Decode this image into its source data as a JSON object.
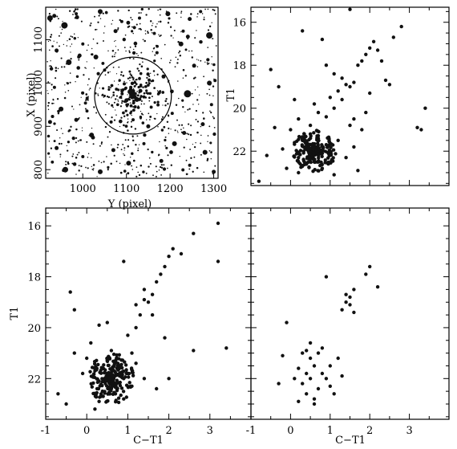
{
  "chart_data": [
    {
      "type": "scatter",
      "panel": "field-image",
      "xlabel": "Y (pixel)",
      "ylabel": "X (pixel)",
      "xlim": [
        915,
        1310
      ],
      "ylim": [
        780,
        1175
      ],
      "xticks": [
        "1000",
        "1100",
        "1200",
        "1300"
      ],
      "yticks": [
        "800",
        "900",
        "1000",
        "1100"
      ],
      "x_tick_values": [
        1000,
        1100,
        1200,
        1300
      ],
      "y_tick_values": [
        800,
        900,
        1000,
        1100
      ],
      "circle": {
        "center": [
          1115,
          971
        ],
        "radius": 88
      },
      "stars": [
        [
          1115,
          970,
          3.5
        ],
        [
          1108,
          980,
          3
        ],
        [
          1124,
          962,
          3
        ],
        [
          1100,
          960,
          2.5
        ],
        [
          1132,
          982,
          2.5
        ],
        [
          1110,
          990,
          2
        ],
        [
          1090,
          975,
          2
        ],
        [
          1140,
          968,
          2
        ],
        [
          1120,
          945,
          2
        ],
        [
          1095,
          998,
          2
        ],
        [
          1150,
          995,
          1.8
        ],
        [
          1080,
          950,
          1.8
        ],
        [
          1130,
          1010,
          1.8
        ],
        [
          1060,
          985,
          1.6
        ],
        [
          1165,
          955,
          1.6
        ],
        [
          925,
          1150,
          3.5
        ],
        [
          958,
          1133,
          4
        ],
        [
          985,
          1160,
          2
        ],
        [
          1040,
          1165,
          3
        ],
        [
          1075,
          1120,
          2.5
        ],
        [
          1130,
          1150,
          2
        ],
        [
          1195,
          1160,
          3
        ],
        [
          1245,
          1148,
          2.5
        ],
        [
          1290,
          1110,
          4
        ],
        [
          1270,
          1165,
          2
        ],
        [
          940,
          1075,
          2.5
        ],
        [
          968,
          1048,
          3.5
        ],
        [
          1000,
          1090,
          2
        ],
        [
          1030,
          1060,
          3
        ],
        [
          1225,
          1090,
          3
        ],
        [
          1255,
          1040,
          2.5
        ],
        [
          1290,
          1000,
          3
        ],
        [
          1240,
          975,
          4.5
        ],
        [
          1205,
          930,
          2
        ],
        [
          1275,
          905,
          2.5
        ],
        [
          935,
          990,
          2
        ],
        [
          950,
          940,
          3
        ],
        [
          985,
          915,
          2.5
        ],
        [
          1010,
          965,
          2
        ],
        [
          1020,
          880,
          3
        ],
        [
          940,
          850,
          2.5
        ],
        [
          960,
          800,
          3.5
        ],
        [
          1000,
          830,
          2
        ],
        [
          1040,
          795,
          3
        ],
        [
          1070,
          845,
          2.5
        ],
        [
          1105,
          815,
          3
        ],
        [
          1140,
          860,
          2
        ],
        [
          1180,
          820,
          2.5
        ],
        [
          1210,
          860,
          3
        ],
        [
          1245,
          810,
          2
        ],
        [
          1280,
          840,
          3
        ],
        [
          1300,
          795,
          2.5
        ],
        [
          1170,
          1070,
          2
        ],
        [
          1050,
          1030,
          2
        ],
        [
          1230,
          1120,
          2
        ],
        [
          1185,
          1015,
          2.5
        ],
        [
          1065,
          910,
          2
        ],
        [
          1150,
          900,
          2.5
        ],
        [
          1295,
          950,
          2
        ],
        [
          925,
          910,
          2.5
        ]
      ]
    },
    {
      "type": "scatter",
      "panel": "cmd-cluster-field",
      "xlabel": "",
      "ylabel": "T1",
      "xlim": [
        -1,
        4
      ],
      "ylim": [
        23.6,
        15.3
      ],
      "y_tick_values": [
        16,
        18,
        20,
        22
      ],
      "yticks": [
        "16",
        "18",
        "20",
        "22"
      ],
      "points": [
        [
          0.6,
          22.0
        ],
        [
          0.4,
          21.8
        ],
        [
          0.5,
          22.2
        ],
        [
          0.3,
          21.5
        ],
        [
          0.7,
          21.9
        ],
        [
          0.8,
          22.1
        ],
        [
          0.2,
          22.3
        ],
        [
          0.5,
          21.2
        ],
        [
          0.9,
          21.7
        ],
        [
          0.1,
          21.6
        ],
        [
          0.6,
          22.5
        ],
        [
          0.4,
          22.6
        ],
        [
          0.7,
          21.4
        ],
        [
          1.0,
          22.0
        ],
        [
          0.3,
          22.7
        ],
        [
          0.0,
          21.0
        ],
        [
          -0.2,
          21.9
        ],
        [
          1.2,
          21.5
        ],
        [
          0.8,
          22.8
        ],
        [
          0.5,
          20.8
        ],
        [
          0.2,
          20.5
        ],
        [
          -0.4,
          20.9
        ],
        [
          -0.6,
          22.2
        ],
        [
          -0.8,
          23.4
        ],
        [
          1.4,
          22.3
        ],
        [
          1.6,
          21.8
        ],
        [
          0.9,
          20.4
        ],
        [
          1.1,
          20.0
        ],
        [
          1.3,
          19.6
        ],
        [
          1.2,
          19.2
        ],
        [
          1.4,
          18.9
        ],
        [
          1.5,
          19.0
        ],
        [
          1.6,
          18.8
        ],
        [
          1.3,
          18.6
        ],
        [
          1.1,
          18.4
        ],
        [
          1.7,
          18.0
        ],
        [
          1.8,
          17.8
        ],
        [
          2.0,
          17.2
        ],
        [
          1.9,
          17.5
        ],
        [
          2.1,
          16.9
        ],
        [
          2.2,
          17.3
        ],
        [
          2.6,
          16.7
        ],
        [
          2.8,
          16.2
        ],
        [
          2.3,
          17.8
        ],
        [
          2.4,
          18.7
        ],
        [
          2.5,
          18.9
        ],
        [
          3.2,
          20.9
        ],
        [
          3.3,
          21.0
        ],
        [
          3.4,
          20.0
        ],
        [
          0.3,
          16.4
        ],
        [
          0.8,
          16.8
        ],
        [
          1.5,
          15.4
        ],
        [
          0.9,
          18.0
        ],
        [
          1.0,
          19.5
        ],
        [
          1.6,
          20.5
        ],
        [
          1.8,
          21.0
        ],
        [
          2.0,
          19.3
        ],
        [
          1.9,
          20.2
        ],
        [
          -0.5,
          18.2
        ],
        [
          -0.3,
          19.0
        ],
        [
          0.1,
          19.6
        ],
        [
          0.6,
          19.8
        ],
        [
          0.7,
          20.2
        ],
        [
          1.5,
          20.8
        ],
        [
          1.7,
          22.9
        ],
        [
          0.2,
          23.0
        ],
        [
          1.1,
          23.1
        ],
        [
          -0.1,
          22.8
        ]
      ]
    },
    {
      "type": "scatter",
      "panel": "cmd-cluster",
      "xlabel": "C−T1",
      "ylabel": "T1",
      "xlim": [
        -1,
        4
      ],
      "ylim": [
        23.6,
        15.3
      ],
      "x_tick_values": [
        -1,
        0,
        1,
        2,
        3
      ],
      "xticks": [
        "-1",
        "0",
        "1",
        "2",
        "3"
      ],
      "y_tick_values": [
        16,
        18,
        20,
        22
      ],
      "yticks": [
        "16",
        "18",
        "20",
        "22"
      ],
      "points": [
        [
          0.6,
          22.0
        ],
        [
          0.5,
          21.8
        ],
        [
          0.7,
          22.2
        ],
        [
          0.4,
          21.6
        ],
        [
          0.8,
          21.9
        ],
        [
          0.6,
          22.4
        ],
        [
          0.3,
          22.1
        ],
        [
          0.5,
          21.3
        ],
        [
          0.9,
          22.0
        ],
        [
          0.2,
          21.7
        ],
        [
          0.7,
          22.6
        ],
        [
          0.4,
          22.7
        ],
        [
          0.8,
          21.5
        ],
        [
          1.0,
          21.8
        ],
        [
          0.3,
          22.9
        ],
        [
          0.0,
          21.2
        ],
        [
          -0.1,
          21.8
        ],
        [
          1.2,
          21.4
        ],
        [
          0.9,
          22.8
        ],
        [
          0.6,
          20.9
        ],
        [
          0.1,
          20.6
        ],
        [
          -0.3,
          21.0
        ],
        [
          -0.7,
          22.6
        ],
        [
          -0.5,
          23.0
        ],
        [
          1.1,
          22.3
        ],
        [
          1.4,
          22.0
        ],
        [
          1.0,
          20.3
        ],
        [
          1.2,
          20.0
        ],
        [
          1.3,
          19.5
        ],
        [
          1.2,
          19.1
        ],
        [
          1.4,
          18.9
        ],
        [
          1.5,
          19.0
        ],
        [
          1.6,
          18.7
        ],
        [
          1.4,
          18.5
        ],
        [
          1.7,
          18.2
        ],
        [
          1.8,
          17.9
        ],
        [
          1.9,
          17.6
        ],
        [
          2.0,
          17.2
        ],
        [
          2.1,
          16.9
        ],
        [
          2.3,
          17.1
        ],
        [
          2.6,
          16.3
        ],
        [
          3.2,
          15.9
        ],
        [
          3.2,
          17.4
        ],
        [
          3.4,
          20.8
        ],
        [
          2.6,
          20.9
        ],
        [
          1.9,
          20.4
        ],
        [
          0.9,
          17.4
        ],
        [
          1.6,
          19.5
        ],
        [
          0.3,
          19.9
        ],
        [
          -0.4,
          18.6
        ],
        [
          -0.3,
          19.3
        ],
        [
          0.5,
          19.8
        ],
        [
          1.1,
          21.0
        ],
        [
          1.7,
          22.4
        ],
        [
          2.0,
          22.0
        ],
        [
          0.2,
          23.2
        ]
      ]
    },
    {
      "type": "scatter",
      "panel": "cmd-field",
      "xlabel": "C−T1",
      "ylabel": "",
      "xlim": [
        -1,
        4
      ],
      "ylim": [
        23.6,
        15.3
      ],
      "x_tick_values": [
        -1,
        0,
        1,
        2,
        3
      ],
      "xticks": [
        "-1",
        "0",
        "1",
        "2",
        "3"
      ],
      "points": [
        [
          0.4,
          21.8
        ],
        [
          0.5,
          22.0
        ],
        [
          0.6,
          21.5
        ],
        [
          0.3,
          22.2
        ],
        [
          0.7,
          22.4
        ],
        [
          0.5,
          21.2
        ],
        [
          0.8,
          21.8
        ],
        [
          0.2,
          21.6
        ],
        [
          0.4,
          22.6
        ],
        [
          0.6,
          22.8
        ],
        [
          0.9,
          22.0
        ],
        [
          0.3,
          21.0
        ],
        [
          1.0,
          21.5
        ],
        [
          0.1,
          22.0
        ],
        [
          0.7,
          21.0
        ],
        [
          1.1,
          22.6
        ],
        [
          0.5,
          20.6
        ],
        [
          -0.2,
          21.1
        ],
        [
          -0.3,
          22.2
        ],
        [
          0.8,
          20.8
        ],
        [
          0.4,
          20.9
        ],
        [
          1.2,
          21.2
        ],
        [
          1.4,
          19.0
        ],
        [
          1.5,
          18.8
        ],
        [
          1.3,
          19.3
        ],
        [
          1.6,
          19.4
        ],
        [
          1.5,
          19.1
        ],
        [
          1.4,
          18.7
        ],
        [
          1.6,
          18.5
        ],
        [
          2.0,
          17.6
        ],
        [
          1.9,
          17.9
        ],
        [
          2.2,
          18.4
        ],
        [
          0.9,
          18.0
        ],
        [
          -0.1,
          19.8
        ],
        [
          0.2,
          22.9
        ],
        [
          1.0,
          22.3
        ],
        [
          0.6,
          23.0
        ],
        [
          1.3,
          21.9
        ]
      ]
    }
  ]
}
